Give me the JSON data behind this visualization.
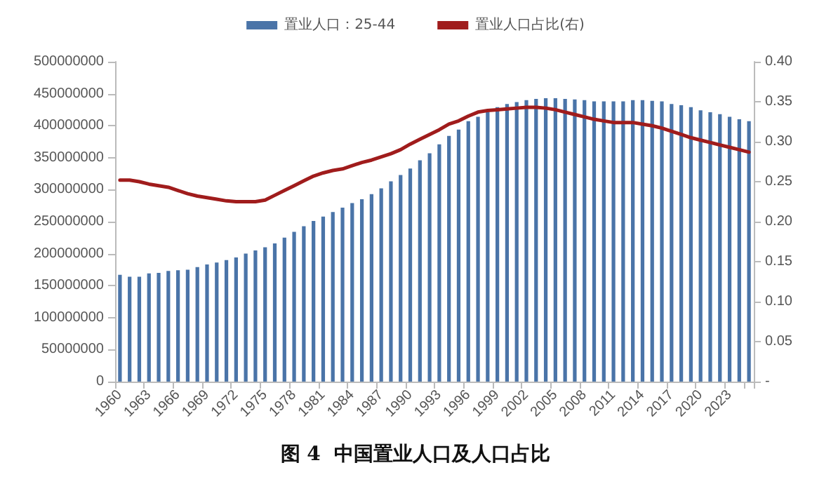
{
  "chart_data": {
    "type": "bar",
    "title": "图 4  中国置业人口及人口占比",
    "categories": [
      "1960",
      null,
      null,
      "1963",
      null,
      null,
      "1966",
      null,
      null,
      "1969",
      null,
      null,
      "1972",
      null,
      null,
      "1975",
      null,
      null,
      "1978",
      null,
      null,
      "1981",
      null,
      null,
      "1984",
      null,
      null,
      "1987",
      null,
      null,
      "1990",
      null,
      null,
      "1993",
      null,
      null,
      "1996",
      null,
      null,
      "1999",
      null,
      null,
      "2002",
      null,
      null,
      "2005",
      null,
      null,
      "2008",
      null,
      null,
      "2011",
      null,
      null,
      "2014",
      null,
      null,
      "2017",
      null,
      null,
      "2020",
      null,
      null,
      "2023",
      null,
      null
    ],
    "series": [
      {
        "name": "置业人口：25-44",
        "color": "#4a74a8",
        "values": [
          167000000,
          164000000,
          164000000,
          169000000,
          170000000,
          173000000,
          174000000,
          175000000,
          179000000,
          183000000,
          186000000,
          190000000,
          194000000,
          200000000,
          205000000,
          210000000,
          216000000,
          225000000,
          234000000,
          243000000,
          251000000,
          258000000,
          265000000,
          272000000,
          279000000,
          285000000,
          293000000,
          302000000,
          313000000,
          323000000,
          333000000,
          346000000,
          357000000,
          371000000,
          384000000,
          394000000,
          407000000,
          414000000,
          421000000,
          429000000,
          434000000,
          437000000,
          440000000,
          442000000,
          443000000,
          443000000,
          442000000,
          441000000,
          440000000,
          438000000,
          438000000,
          438000000,
          438000000,
          440000000,
          440000000,
          439000000,
          438000000,
          434000000,
          432000000,
          429000000,
          424000000,
          421000000,
          418000000,
          414000000,
          410000000,
          407000000
        ]
      },
      {
        "name": "置业人口占比(右)",
        "type": "line",
        "axis": "y2",
        "color": "#a01c1c",
        "values": [
          0.252,
          0.252,
          0.25,
          0.247,
          0.245,
          0.243,
          0.239,
          0.235,
          0.232,
          0.23,
          0.228,
          0.226,
          0.225,
          0.225,
          0.225,
          0.227,
          0.233,
          0.239,
          0.245,
          0.251,
          0.257,
          0.261,
          0.264,
          0.266,
          0.27,
          0.274,
          0.277,
          0.281,
          0.285,
          0.29,
          0.297,
          0.303,
          0.309,
          0.315,
          0.322,
          0.326,
          0.332,
          0.337,
          0.339,
          0.34,
          0.341,
          0.342,
          0.343,
          0.343,
          0.342,
          0.34,
          0.337,
          0.334,
          0.331,
          0.328,
          0.326,
          0.324,
          0.324,
          0.324,
          0.322,
          0.32,
          0.317,
          0.313,
          0.309,
          0.305,
          0.302,
          0.299,
          0.296,
          0.293,
          0.29,
          0.287
        ]
      }
    ],
    "ylim": [
      0,
      500000000
    ],
    "yticks": [
      0,
      50000000,
      100000000,
      150000000,
      200000000,
      250000000,
      300000000,
      350000000,
      400000000,
      450000000,
      500000000
    ],
    "y2lim": [
      0,
      0.4
    ],
    "y2ticks": [
      {
        "value": 0,
        "label": "-"
      },
      {
        "value": 0.05,
        "label": "0.05"
      },
      {
        "value": 0.1,
        "label": "0.10"
      },
      {
        "value": 0.15,
        "label": "0.15"
      },
      {
        "value": 0.2,
        "label": "0.20"
      },
      {
        "value": 0.25,
        "label": "0.25"
      },
      {
        "value": 0.3,
        "label": "0.30"
      },
      {
        "value": 0.35,
        "label": "0.35"
      },
      {
        "value": 0.4,
        "label": "0.40"
      }
    ],
    "legend": "top",
    "grid": false,
    "marker": "none",
    "line_style": "solid"
  }
}
